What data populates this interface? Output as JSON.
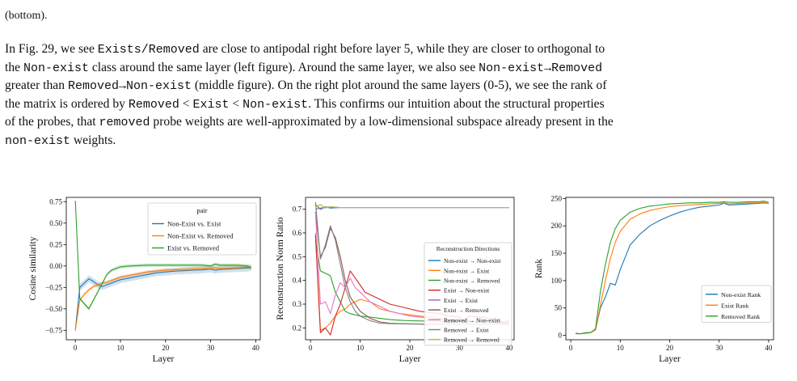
{
  "continuation": "(bottom).",
  "paragraph": {
    "lines": [
      [
        {
          "t": "In Fig. 29, we see ",
          "m": false
        },
        {
          "t": "Exists/Removed",
          "m": true
        },
        {
          "t": " are close to antipodal right before layer 5, while they are closer to orthogonal to",
          "m": false
        }
      ],
      [
        {
          "t": "the ",
          "m": false
        },
        {
          "t": "Non-exist",
          "m": true
        },
        {
          "t": " class around the same layer (left figure). Around the same layer, we also see ",
          "m": false
        },
        {
          "t": "Non-exist→Removed",
          "m": true
        }
      ],
      [
        {
          "t": "greater than ",
          "m": false
        },
        {
          "t": "Removed→Non-exist",
          "m": true
        },
        {
          "t": " (middle figure). On the right plot around the same layers (0-5), we see the rank of",
          "m": false
        }
      ],
      [
        {
          "t": "the matrix is ordered by ",
          "m": false
        },
        {
          "t": "Removed",
          "m": true
        },
        {
          "t": " < ",
          "m": false
        },
        {
          "t": "Exist",
          "m": true
        },
        {
          "t": " < ",
          "m": false
        },
        {
          "t": "Non-exist",
          "m": true
        },
        {
          "t": ". This confirms our intuition about the structural properties",
          "m": false
        }
      ],
      [
        {
          "t": "of the probes, that ",
          "m": false
        },
        {
          "t": "removed",
          "m": true
        },
        {
          "t": " probe weights are well-approximated by a low-dimensional subspace already present in the",
          "m": false
        }
      ],
      [
        {
          "t": "non-exist",
          "m": true
        },
        {
          "t": " weights.",
          "m": false
        }
      ]
    ]
  },
  "chart_data": [
    {
      "type": "line",
      "xlabel": "Layer",
      "ylabel": "Cosine similarity",
      "xlim": [
        -2,
        41
      ],
      "ylim": [
        -0.86,
        0.8
      ],
      "xticks": [
        0,
        10,
        20,
        30,
        40
      ],
      "yticks": [
        -0.75,
        -0.5,
        -0.25,
        0.0,
        0.25,
        0.5,
        0.75
      ],
      "ytick_labels": [
        "−0.75",
        "−0.50",
        "−0.25",
        "0.00",
        "0.25",
        "0.50",
        "0.75"
      ],
      "legend": {
        "title": "pair",
        "position": "top-right"
      },
      "grid": false,
      "series": [
        {
          "name": "Non-Exist vs. Exist",
          "color": "#1f77b4",
          "band": 0.04,
          "x": [
            0,
            1,
            2,
            3,
            4,
            5,
            6,
            7,
            8,
            9,
            10,
            12,
            14,
            16,
            18,
            20,
            22,
            24,
            26,
            28,
            30,
            31,
            32,
            34,
            36,
            38,
            39
          ],
          "y": [
            -0.75,
            -0.25,
            -0.2,
            -0.15,
            -0.18,
            -0.22,
            -0.24,
            -0.22,
            -0.2,
            -0.18,
            -0.16,
            -0.14,
            -0.12,
            -0.1,
            -0.08,
            -0.07,
            -0.06,
            -0.055,
            -0.05,
            -0.045,
            -0.035,
            -0.05,
            -0.04,
            -0.035,
            -0.03,
            -0.025,
            -0.02
          ]
        },
        {
          "name": "Non-Exist vs. Removed",
          "color": "#ff7f0e",
          "band": 0.02,
          "x": [
            0,
            1,
            2,
            3,
            4,
            5,
            6,
            7,
            8,
            9,
            10,
            12,
            14,
            16,
            18,
            20,
            22,
            24,
            26,
            28,
            30,
            31,
            32,
            34,
            36,
            38,
            39
          ],
          "y": [
            -0.75,
            -0.4,
            -0.33,
            -0.28,
            -0.24,
            -0.22,
            -0.2,
            -0.19,
            -0.17,
            -0.15,
            -0.13,
            -0.11,
            -0.09,
            -0.07,
            -0.06,
            -0.05,
            -0.045,
            -0.04,
            -0.035,
            -0.03,
            -0.03,
            -0.02,
            -0.03,
            -0.025,
            -0.02,
            -0.015,
            -0.02
          ]
        },
        {
          "name": "Exist vs. Removed",
          "color": "#2ca02c",
          "band": 0.02,
          "x": [
            0,
            1,
            2,
            3,
            4,
            5,
            6,
            7,
            8,
            9,
            10,
            12,
            14,
            16,
            18,
            20,
            22,
            24,
            26,
            28,
            30,
            31,
            32,
            34,
            36,
            38,
            39
          ],
          "y": [
            0.76,
            -0.38,
            -0.44,
            -0.5,
            -0.4,
            -0.3,
            -0.2,
            -0.1,
            -0.05,
            -0.03,
            -0.01,
            0.0,
            0.005,
            0.01,
            0.01,
            0.01,
            0.01,
            0.01,
            0.01,
            0.01,
            0.0,
            0.02,
            0.01,
            0.01,
            0.01,
            0.0,
            -0.02
          ]
        }
      ]
    },
    {
      "type": "line",
      "xlabel": "Layer",
      "ylabel": "Reconstruction Norm Ratio",
      "xlim": [
        -1,
        41
      ],
      "ylim": [
        0.15,
        0.75
      ],
      "xticks": [
        0,
        10,
        20,
        30,
        40
      ],
      "yticks": [
        0.2,
        0.3,
        0.4,
        0.5,
        0.6,
        0.7
      ],
      "ytick_labels": [
        "0.2",
        "0.3",
        "0.4",
        "0.5",
        "0.6",
        "0.7"
      ],
      "legend": {
        "title": "Reconstruction Directions",
        "position": "right"
      },
      "grid": false,
      "series": [
        {
          "name": "Non-exist → Non-exist",
          "color": "#1f77b4",
          "x": [
            1,
            2,
            3,
            4,
            6,
            10,
            20,
            30,
            40
          ],
          "y": [
            0.72,
            0.7,
            0.71,
            0.705,
            0.707,
            0.707,
            0.707,
            0.707,
            0.707
          ]
        },
        {
          "name": "Non-exist → Exist",
          "color": "#ff7f0e",
          "x": [
            1,
            2,
            3,
            4,
            5,
            6,
            7,
            8,
            9,
            10,
            12,
            14,
            16,
            18,
            20,
            22,
            24,
            26,
            28,
            30,
            31,
            32,
            34,
            36,
            38,
            40
          ],
          "y": [
            0.6,
            0.19,
            0.2,
            0.22,
            0.25,
            0.27,
            0.28,
            0.3,
            0.31,
            0.32,
            0.31,
            0.28,
            0.27,
            0.26,
            0.255,
            0.25,
            0.245,
            0.24,
            0.235,
            0.23,
            0.225,
            0.23,
            0.225,
            0.225,
            0.22,
            0.225
          ]
        },
        {
          "name": "Non-exist → Removed",
          "color": "#2ca02c",
          "x": [
            1,
            2,
            3,
            4,
            5,
            6,
            7,
            8,
            10,
            12,
            14,
            16,
            18,
            20,
            25,
            30,
            35,
            40
          ],
          "y": [
            0.57,
            0.44,
            0.43,
            0.42,
            0.35,
            0.31,
            0.27,
            0.26,
            0.25,
            0.245,
            0.24,
            0.235,
            0.232,
            0.23,
            0.228,
            0.226,
            0.225,
            0.225
          ]
        },
        {
          "name": "Exist → Non-exist",
          "color": "#d62728",
          "x": [
            1,
            2,
            3,
            4,
            5,
            6,
            7,
            8,
            9,
            10,
            11,
            12,
            14,
            16,
            18,
            20,
            22,
            24,
            26,
            28,
            30,
            31,
            32,
            34,
            36,
            38,
            39,
            40
          ],
          "y": [
            0.59,
            0.18,
            0.2,
            0.17,
            0.25,
            0.3,
            0.37,
            0.44,
            0.41,
            0.38,
            0.35,
            0.34,
            0.32,
            0.3,
            0.29,
            0.28,
            0.27,
            0.265,
            0.26,
            0.25,
            0.245,
            0.23,
            0.25,
            0.245,
            0.24,
            0.235,
            0.22,
            0.235
          ]
        },
        {
          "name": "Exist → Exist",
          "color": "#9467bd",
          "x": [
            1,
            2,
            4,
            6,
            10,
            20,
            30,
            40
          ],
          "y": [
            0.7,
            0.705,
            0.71,
            0.707,
            0.707,
            0.707,
            0.707,
            0.707
          ]
        },
        {
          "name": "Exist → Removed",
          "color": "#8c564b",
          "x": [
            1,
            2,
            3,
            4,
            5,
            6,
            7,
            8,
            9,
            10,
            12,
            14,
            16,
            18,
            20,
            22,
            24,
            26,
            28,
            30,
            32,
            34,
            36,
            38,
            40
          ],
          "y": [
            0.69,
            0.5,
            0.54,
            0.62,
            0.58,
            0.5,
            0.4,
            0.33,
            0.3,
            0.27,
            0.24,
            0.225,
            0.22,
            0.218,
            0.217,
            0.216,
            0.216,
            0.215,
            0.215,
            0.215,
            0.215,
            0.215,
            0.215,
            0.215,
            0.215
          ]
        },
        {
          "name": "Removed → Non-exist",
          "color": "#e377c2",
          "x": [
            1,
            2,
            3,
            4,
            5,
            6,
            7,
            8,
            9,
            10,
            12,
            14,
            16,
            18,
            20,
            22,
            24,
            26,
            28,
            30,
            32,
            34,
            36,
            38,
            40
          ],
          "y": [
            0.69,
            0.3,
            0.31,
            0.26,
            0.34,
            0.39,
            0.37,
            0.41,
            0.37,
            0.35,
            0.31,
            0.29,
            0.27,
            0.26,
            0.25,
            0.245,
            0.24,
            0.235,
            0.23,
            0.23,
            0.23,
            0.225,
            0.225,
            0.22,
            0.22
          ]
        },
        {
          "name": "Removed → Exist",
          "color": "#7f7f7f",
          "x": [
            1,
            2,
            3,
            4,
            5,
            6,
            7,
            8,
            9,
            10,
            12,
            14,
            16,
            18,
            20,
            25,
            30,
            35,
            40
          ],
          "y": [
            0.73,
            0.49,
            0.55,
            0.63,
            0.57,
            0.47,
            0.37,
            0.31,
            0.27,
            0.25,
            0.23,
            0.22,
            0.218,
            0.217,
            0.216,
            0.215,
            0.215,
            0.215,
            0.215
          ]
        },
        {
          "name": "Removed → Removed",
          "color": "#bcbd22",
          "x": [
            1,
            2,
            3,
            4,
            6,
            10,
            20,
            30,
            40
          ],
          "y": [
            0.71,
            0.72,
            0.705,
            0.71,
            0.707,
            0.707,
            0.707,
            0.707,
            0.707
          ]
        }
      ]
    },
    {
      "type": "line",
      "xlabel": "Layer",
      "ylabel": "Rank",
      "xlim": [
        -1,
        41
      ],
      "ylim": [
        -8,
        252
      ],
      "xticks": [
        0,
        10,
        20,
        30,
        40
      ],
      "yticks": [
        0,
        50,
        100,
        150,
        200,
        250
      ],
      "ytick_labels": [
        "0",
        "50",
        "100",
        "150",
        "200",
        "250"
      ],
      "legend": {
        "title": "",
        "position": "bottom-right"
      },
      "grid": false,
      "series": [
        {
          "name": "Non-exist Rank",
          "color": "#1f77b4",
          "x": [
            1,
            2,
            3,
            4,
            5,
            6,
            7,
            8,
            9,
            10,
            12,
            14,
            16,
            18,
            20,
            22,
            24,
            26,
            28,
            30,
            31,
            32,
            34,
            36,
            38,
            39,
            40
          ],
          "y": [
            3,
            3,
            4,
            5,
            10,
            50,
            70,
            95,
            92,
            120,
            165,
            185,
            200,
            210,
            218,
            225,
            230,
            234,
            236,
            238,
            241,
            238,
            239,
            240,
            241,
            242,
            241
          ]
        },
        {
          "name": "Exist Rank",
          "color": "#ff7f0e",
          "x": [
            1,
            2,
            3,
            4,
            5,
            6,
            7,
            8,
            9,
            10,
            12,
            14,
            16,
            18,
            20,
            22,
            24,
            26,
            28,
            30,
            31,
            32,
            34,
            36,
            38,
            39,
            40
          ],
          "y": [
            3,
            3,
            4,
            5,
            10,
            55,
            100,
            140,
            170,
            190,
            212,
            222,
            228,
            232,
            235,
            237,
            238,
            239,
            240,
            241,
            242,
            240,
            241,
            242,
            242,
            243,
            241
          ]
        },
        {
          "name": "Removed Rank",
          "color": "#2ca02c",
          "x": [
            1,
            2,
            3,
            4,
            5,
            6,
            7,
            8,
            9,
            10,
            12,
            14,
            16,
            18,
            20,
            22,
            24,
            26,
            28,
            30,
            31,
            32,
            34,
            36,
            38,
            39,
            40
          ],
          "y": [
            4,
            3,
            5,
            5,
            12,
            80,
            130,
            170,
            195,
            210,
            225,
            232,
            236,
            238,
            240,
            241,
            242,
            242,
            243,
            243,
            244,
            243,
            243,
            244,
            244,
            245,
            243
          ]
        }
      ]
    }
  ]
}
